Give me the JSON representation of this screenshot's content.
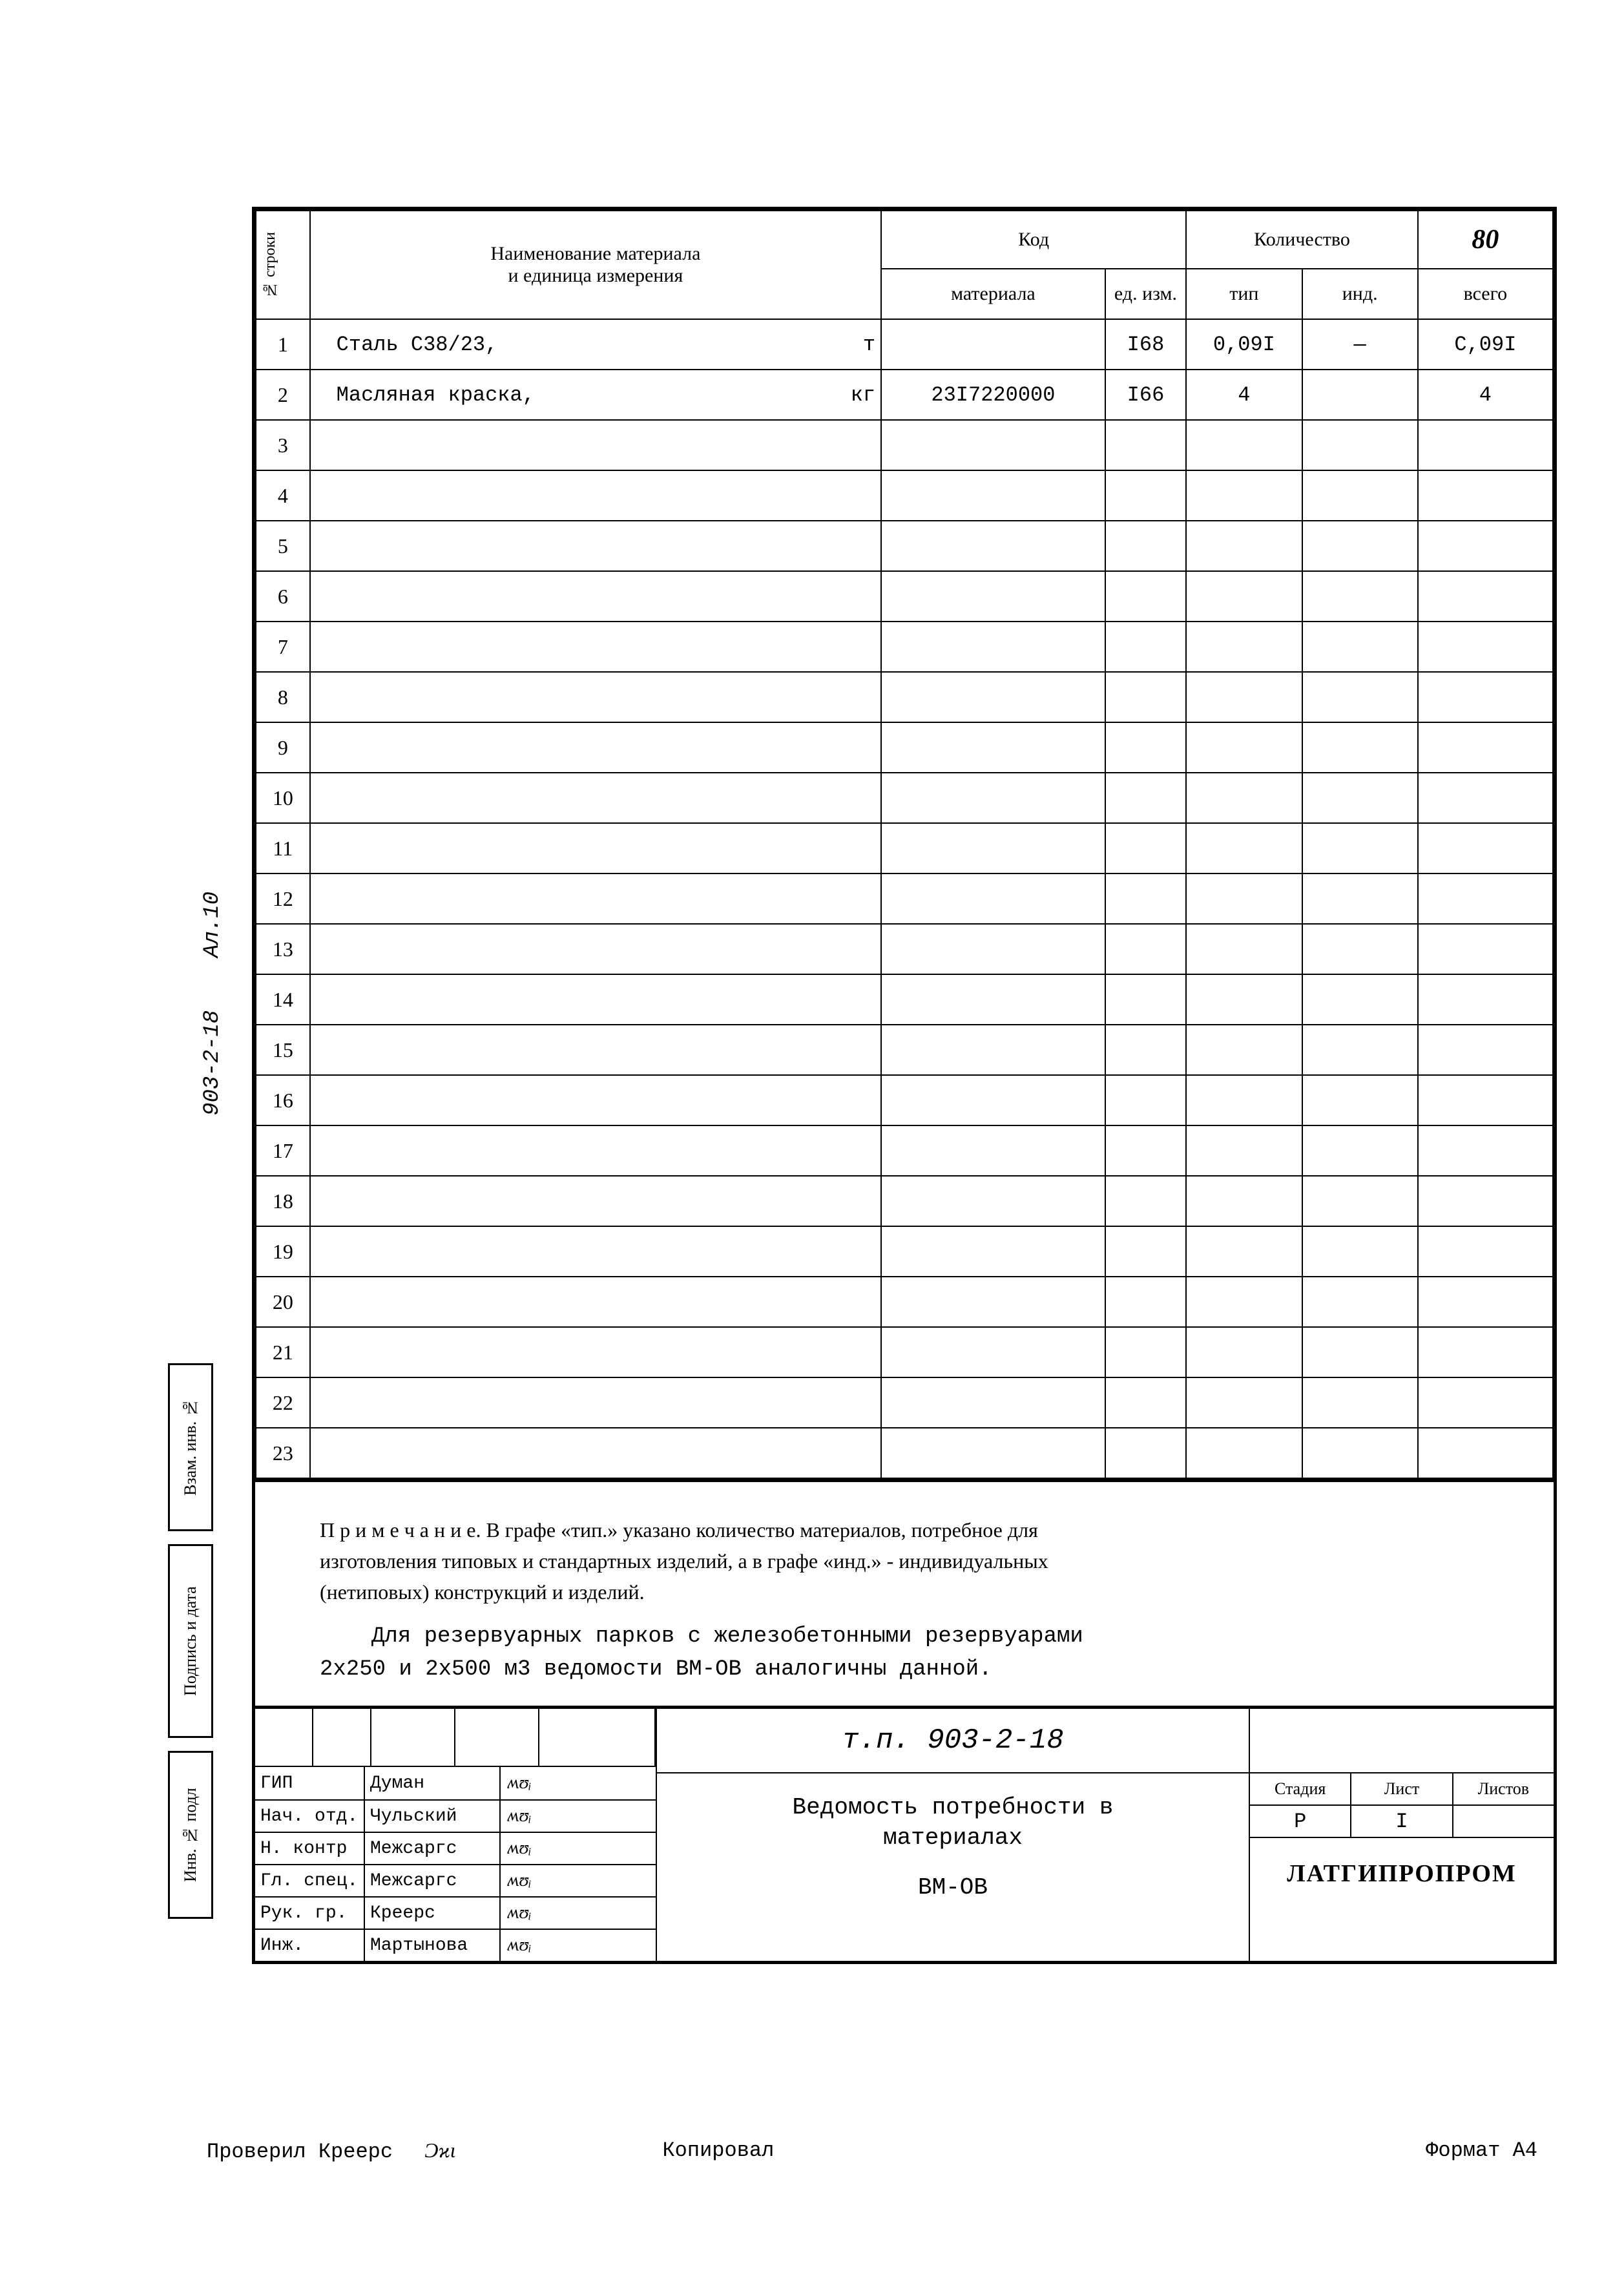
{
  "page_number": "80",
  "header": {
    "col_row": "№ строки",
    "col_name_l1": "Наименование материала",
    "col_name_l2": "и единица измерения",
    "col_code": "Код",
    "col_matcode": "материала",
    "col_unitcode": "ед. изм.",
    "col_qty": "Количество",
    "col_tip": "тип",
    "col_ind": "инд.",
    "col_total": "всего"
  },
  "rows": [
    {
      "n": "1",
      "name": "Сталь С38/23,",
      "unit": "т",
      "mat": "",
      "uc": "I68",
      "tip": "0,09I",
      "ind": "—",
      "tot": "С,09I"
    },
    {
      "n": "2",
      "name": "Масляная краска,",
      "unit": "кг",
      "mat": "23I7220000",
      "uc": "I66",
      "tip": "4",
      "ind": "",
      "tot": "4"
    },
    {
      "n": "3"
    },
    {
      "n": "4"
    },
    {
      "n": "5"
    },
    {
      "n": "6"
    },
    {
      "n": "7"
    },
    {
      "n": "8"
    },
    {
      "n": "9"
    },
    {
      "n": "10"
    },
    {
      "n": "11"
    },
    {
      "n": "12"
    },
    {
      "n": "13"
    },
    {
      "n": "14"
    },
    {
      "n": "15"
    },
    {
      "n": "16"
    },
    {
      "n": "17"
    },
    {
      "n": "18"
    },
    {
      "n": "19"
    },
    {
      "n": "20"
    },
    {
      "n": "21"
    },
    {
      "n": "22"
    },
    {
      "n": "23"
    }
  ],
  "notes": {
    "line1": "П р и м е ч а н и е. В графе «тип.» указано количество материалов, потребное для",
    "line2": "изготовления типовых и стандартных изделий, а в графе «инд.» - индивидуальных",
    "line3": "(нетиповых) конструкций и изделий.",
    "line4": "Для резервуарных парков с железобетонными резервуарами",
    "line5": "2х250 и 2х500 м3 ведомости ВМ-ОВ аналогичны данной."
  },
  "title_block": {
    "project_code": "т.п. 903-2-18",
    "doc_title_l1": "Ведомость потребности в",
    "doc_title_l2": "материалах",
    "doc_code": "ВМ-ОВ",
    "stage_label": "Стадия",
    "sheet_label": "Лист",
    "sheets_label": "Листов",
    "stage_val": "Р",
    "sheet_val": "I",
    "sheets_val": "",
    "org": "ЛАТГИПРОПРОМ"
  },
  "signatures": [
    {
      "role": "ГИП",
      "name": "Думан"
    },
    {
      "role": "Нач. отд.",
      "name": "Чульский"
    },
    {
      "role": "Н. контр",
      "name": "Межсаргс"
    },
    {
      "role": "Гл. спец.",
      "name": "Межсаргс"
    },
    {
      "role": "Рук. гр.",
      "name": "Креерс"
    },
    {
      "role": "Инж.",
      "name": "Мартынова"
    }
  ],
  "side": {
    "project": "903-2-18",
    "album": "Ал.10",
    "stamp1": "Взам. инв. №",
    "stamp2": "Подпись и дата",
    "stamp3": "Инв. № подл"
  },
  "footer": {
    "checked_label": "Проверил",
    "checked_name": "Креерс",
    "copied_label": "Копировал",
    "format": "Формат А4"
  }
}
